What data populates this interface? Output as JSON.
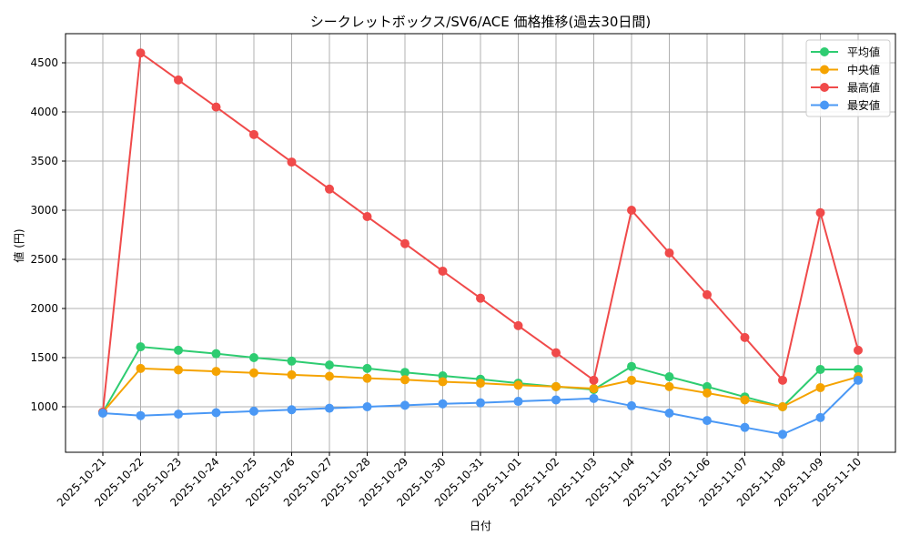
{
  "chart_data": {
    "type": "line",
    "title": "シークレットボックス/SV6/ACE 価格推移(過去30日間)",
    "xlabel": "日付",
    "ylabel": "値 (円)",
    "ylim": [
      600,
      4800
    ],
    "yticks": [
      1000,
      1500,
      2000,
      2500,
      3000,
      3500,
      4000,
      4500
    ],
    "grid": true,
    "legend_position": "upper right",
    "x": [
      "2025-10-21",
      "2025-10-22",
      "2025-10-23",
      "2025-10-24",
      "2025-10-25",
      "2025-10-26",
      "2025-10-27",
      "2025-10-28",
      "2025-10-29",
      "2025-10-30",
      "2025-10-31",
      "2025-11-01",
      "2025-11-02",
      "2025-11-03",
      "2025-11-04",
      "2025-11-05",
      "2025-11-06",
      "2025-11-07",
      "2025-11-08",
      "2025-11-09",
      "2025-11-10"
    ],
    "series": [
      {
        "name": "平均値",
        "color": "#2ecc71",
        "values": [
          945,
          1610,
          1575,
          1540,
          1500,
          1465,
          1425,
          1390,
          1350,
          1315,
          1280,
          1240,
          1205,
          1175,
          1410,
          1305,
          1205,
          1100,
          1000,
          1380,
          1380
        ]
      },
      {
        "name": "中央値",
        "color": "#f5a300",
        "values": [
          945,
          1390,
          1375,
          1360,
          1345,
          1325,
          1310,
          1290,
          1275,
          1255,
          1240,
          1220,
          1205,
          1185,
          1270,
          1205,
          1140,
          1070,
          1000,
          1195,
          1305
        ]
      },
      {
        "name": "最高値",
        "color": "#f04a4a",
        "values": [
          945,
          4600,
          4325,
          4050,
          3770,
          3490,
          3215,
          2935,
          2660,
          2380,
          2105,
          1825,
          1550,
          1270,
          3000,
          2565,
          2140,
          1705,
          1270,
          2975,
          1575
        ]
      },
      {
        "name": "最安値",
        "color": "#4a98f5",
        "values": [
          935,
          910,
          925,
          940,
          955,
          970,
          985,
          1000,
          1015,
          1030,
          1040,
          1055,
          1070,
          1085,
          1010,
          935,
          860,
          790,
          720,
          890,
          1270
        ]
      }
    ]
  }
}
